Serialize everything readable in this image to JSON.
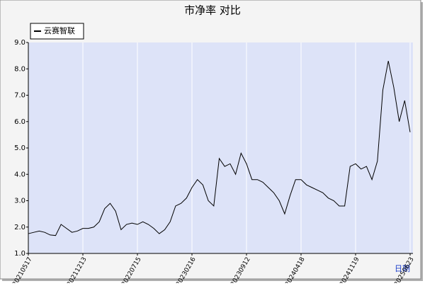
{
  "chart_data": {
    "type": "line",
    "title": "市净率 对比",
    "x_label": "日期",
    "categories": [
      "20210517",
      null,
      null,
      null,
      null,
      null,
      null,
      null,
      null,
      null,
      "20211213",
      null,
      null,
      null,
      null,
      null,
      null,
      null,
      null,
      null,
      "20220715",
      null,
      null,
      null,
      null,
      null,
      null,
      null,
      null,
      null,
      "20230216",
      null,
      null,
      null,
      null,
      null,
      null,
      null,
      null,
      null,
      "20230912",
      null,
      null,
      null,
      null,
      null,
      null,
      null,
      null,
      null,
      "20240418",
      null,
      null,
      null,
      null,
      null,
      null,
      null,
      null,
      null,
      "20241119",
      null,
      null,
      null,
      null,
      null,
      null,
      null,
      null,
      null,
      "20250623"
    ],
    "series": [
      {
        "name": "云赛智联",
        "color": "#000000",
        "values": [
          1.75,
          1.8,
          1.85,
          1.8,
          1.7,
          1.68,
          2.1,
          1.95,
          1.8,
          1.85,
          1.95,
          1.95,
          2.0,
          2.2,
          2.7,
          2.9,
          2.6,
          1.9,
          2.1,
          2.15,
          2.1,
          2.2,
          2.1,
          1.95,
          1.75,
          1.9,
          2.2,
          2.8,
          2.9,
          3.1,
          3.5,
          3.8,
          3.6,
          3.0,
          2.8,
          4.6,
          4.3,
          4.4,
          4.0,
          4.8,
          4.4,
          3.8,
          3.8,
          3.7,
          3.5,
          3.3,
          3.0,
          2.5,
          3.2,
          3.8,
          3.8,
          3.6,
          3.5,
          3.4,
          3.3,
          3.1,
          3.0,
          2.8,
          2.8,
          4.3,
          4.4,
          4.2,
          4.3,
          3.8,
          4.5,
          7.2,
          8.3,
          7.3,
          6.0,
          6.8,
          5.6
        ]
      }
    ],
    "ylim": [
      1,
      9
    ],
    "yticks": [
      {
        "value": 1,
        "label": "1.0"
      },
      {
        "value": 2,
        "label": "2.0"
      },
      {
        "value": 3,
        "label": "3.0"
      },
      {
        "value": 4,
        "label": "4.0"
      },
      {
        "value": 5,
        "label": "5.0"
      },
      {
        "value": 6,
        "label": "6.0"
      },
      {
        "value": 7,
        "label": "7.0"
      },
      {
        "value": 8,
        "label": "8.0"
      },
      {
        "value": 9,
        "label": "9.0"
      }
    ],
    "grid": true,
    "legend": "upper left"
  }
}
